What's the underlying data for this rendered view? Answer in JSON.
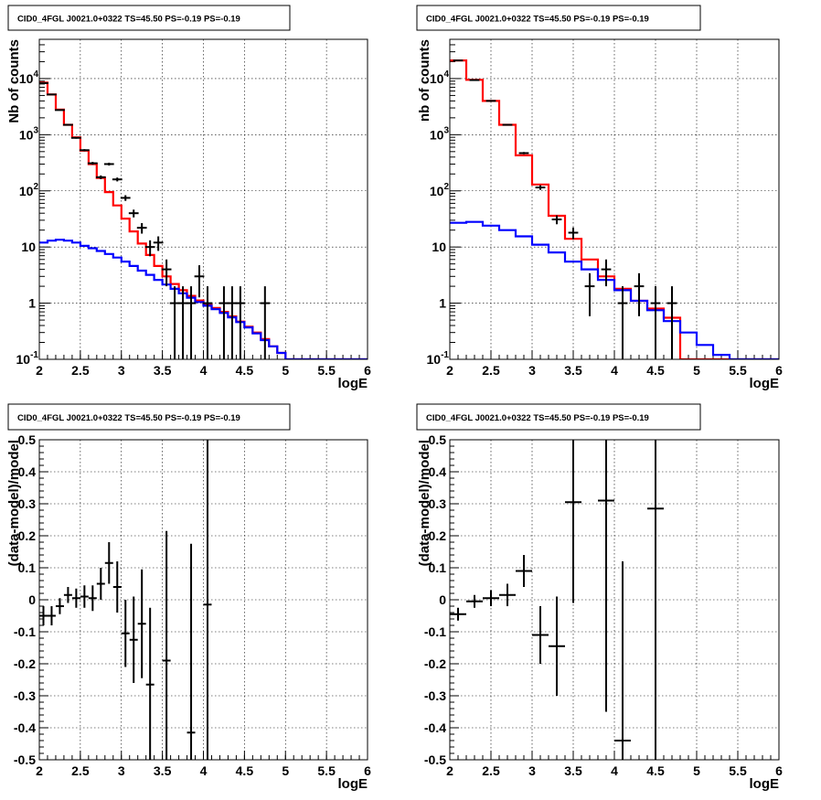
{
  "chart_data": [
    {
      "panel": "top-left",
      "type": "line",
      "title": "CID0_4FGL J0021.0+0322 TS=45.50 PS=-0.19 PS=-0.19",
      "xlabel": "logE",
      "ylabel": "Nb of counts",
      "xlim": [
        2,
        6
      ],
      "ylim": [
        0.1,
        50000
      ],
      "yscale": "log",
      "xticks": [
        "2",
        "2.5",
        "3",
        "3.5",
        "4",
        "4.5",
        "5",
        "5.5",
        "6"
      ],
      "yticks": [
        {
          "value": 0.1,
          "base": "10",
          "exp": "-1"
        },
        {
          "value": 1,
          "base": "1",
          "exp": ""
        },
        {
          "value": 10,
          "base": "10",
          "exp": ""
        },
        {
          "value": 100,
          "base": "10",
          "exp": "2"
        },
        {
          "value": 1000,
          "base": "10",
          "exp": "3"
        },
        {
          "value": 10000,
          "base": "10",
          "exp": "4"
        }
      ],
      "grid": true,
      "bin_edges": [
        2.0,
        2.1,
        2.2,
        2.3,
        2.4,
        2.5,
        2.6,
        2.7,
        2.8,
        2.9,
        3.0,
        3.1,
        3.2,
        3.3,
        3.4,
        3.5,
        3.6,
        3.7,
        3.8,
        3.9,
        4.0,
        4.1,
        4.2,
        4.3,
        4.4,
        4.5,
        4.6,
        4.7,
        4.8,
        4.9,
        5.0,
        5.1,
        5.2,
        5.3,
        5.4,
        5.5,
        5.6,
        5.7,
        5.8,
        5.9,
        6.0
      ],
      "series": [
        {
          "role": "model-total",
          "color": "#ff0000",
          "values": [
            8500,
            5200,
            2800,
            1500,
            900,
            520,
            300,
            170,
            95,
            55,
            32,
            19,
            11.5,
            7.2,
            4.6,
            3.0,
            2.2,
            1.7,
            1.35,
            1.12,
            0.95,
            0.82,
            0.7,
            0.58,
            0.47,
            0.38,
            0.3,
            0.23,
            0.17,
            0.13,
            0.1,
            0.1,
            0.1,
            0.1,
            0.1,
            0.1,
            0.1,
            0.1,
            0.1,
            0.1
          ]
        },
        {
          "role": "model-component",
          "color": "#0000ff",
          "values": [
            12,
            13,
            13.5,
            13,
            12,
            10.5,
            9.5,
            8.5,
            7.5,
            6.5,
            5.5,
            4.6,
            3.8,
            3.2,
            2.6,
            2.15,
            1.8,
            1.5,
            1.25,
            1.05,
            0.9,
            0.78,
            0.67,
            0.56,
            0.46,
            0.37,
            0.29,
            0.22,
            0.17,
            0.13,
            0.1,
            0.1,
            0.1,
            0.1,
            0.1,
            0.1,
            0.1,
            0.1,
            0.1,
            0.1
          ]
        }
      ],
      "points": [
        {
          "x": 2.05,
          "y": 8300
        },
        {
          "x": 2.15,
          "y": 5200
        },
        {
          "x": 2.25,
          "y": 2750
        },
        {
          "x": 2.35,
          "y": 1500
        },
        {
          "x": 2.45,
          "y": 880
        },
        {
          "x": 2.55,
          "y": 530
        },
        {
          "x": 2.65,
          "y": 310
        },
        {
          "x": 2.75,
          "y": 175
        },
        {
          "x": 2.85,
          "y": 300
        },
        {
          "x": 2.95,
          "y": 160
        },
        {
          "x": 3.05,
          "y": 75
        },
        {
          "x": 3.15,
          "y": 40
        },
        {
          "x": 3.25,
          "y": 22
        },
        {
          "x": 3.35,
          "y": 10
        },
        {
          "x": 3.45,
          "y": 12
        },
        {
          "x": 3.55,
          "y": 4
        },
        {
          "x": 3.65,
          "y": 1
        },
        {
          "x": 3.75,
          "y": 1
        },
        {
          "x": 3.85,
          "y": 1
        },
        {
          "x": 3.95,
          "y": 3
        },
        {
          "x": 4.05,
          "y": 1
        },
        {
          "x": 4.25,
          "y": 1
        },
        {
          "x": 4.35,
          "y": 1
        },
        {
          "x": 4.45,
          "y": 1
        },
        {
          "x": 4.75,
          "y": 1
        }
      ]
    },
    {
      "panel": "top-right",
      "type": "line",
      "title": "CID0_4FGL J0021.0+0322 TS=45.50 PS=-0.19 PS=-0.19",
      "xlabel": "logE",
      "ylabel": "nb of counts",
      "xlim": [
        2,
        6
      ],
      "ylim": [
        0.1,
        50000
      ],
      "yscale": "log",
      "xticks": [
        "2",
        "2.5",
        "3",
        "3.5",
        "4",
        "4.5",
        "5",
        "5.5",
        "6"
      ],
      "yticks": [
        {
          "value": 0.1,
          "base": "10",
          "exp": "-1"
        },
        {
          "value": 1,
          "base": "1",
          "exp": ""
        },
        {
          "value": 10,
          "base": "10",
          "exp": ""
        },
        {
          "value": 100,
          "base": "10",
          "exp": "2"
        },
        {
          "value": 1000,
          "base": "10",
          "exp": "3"
        },
        {
          "value": 10000,
          "base": "10",
          "exp": "4"
        }
      ],
      "grid": true,
      "bin_edges": [
        2.0,
        2.2,
        2.4,
        2.6,
        2.8,
        3.0,
        3.2,
        3.4,
        3.6,
        3.8,
        4.0,
        4.2,
        4.4,
        4.6,
        4.8,
        5.0,
        5.2,
        5.4,
        5.6,
        5.8,
        6.0
      ],
      "series": [
        {
          "role": "model-total",
          "color": "#ff0000",
          "values": [
            21000,
            9500,
            4000,
            1500,
            430,
            130,
            36,
            14,
            6,
            3,
            1.8,
            1.1,
            0.8,
            0.55,
            0.1,
            0.1,
            0.1,
            0.1,
            0.1,
            0.1
          ]
        },
        {
          "role": "model-component",
          "color": "#0000ff",
          "values": [
            27,
            28,
            24,
            20,
            15.5,
            11,
            8,
            5.5,
            4,
            2.6,
            1.7,
            1.1,
            0.75,
            0.48,
            0.3,
            0.18,
            0.12,
            0.1,
            0.1,
            0.1
          ]
        }
      ],
      "points": [
        {
          "x": 2.1,
          "y": 21000
        },
        {
          "x": 2.3,
          "y": 9400
        },
        {
          "x": 2.5,
          "y": 4000
        },
        {
          "x": 2.7,
          "y": 1500
        },
        {
          "x": 2.9,
          "y": 470
        },
        {
          "x": 3.1,
          "y": 115
        },
        {
          "x": 3.3,
          "y": 31
        },
        {
          "x": 3.5,
          "y": 18
        },
        {
          "x": 3.7,
          "y": 2
        },
        {
          "x": 3.9,
          "y": 4
        },
        {
          "x": 4.1,
          "y": 1
        },
        {
          "x": 4.3,
          "y": 2
        },
        {
          "x": 4.5,
          "y": 1
        },
        {
          "x": 4.7,
          "y": 1
        }
      ]
    },
    {
      "panel": "bottom-left",
      "type": "scatter",
      "title": "CID0_4FGL J0021.0+0322 TS=45.50 PS=-0.19 PS=-0.19",
      "xlabel": "logE",
      "ylabel": "(data-model)/model",
      "xlim": [
        2,
        6
      ],
      "ylim": [
        -0.5,
        0.5
      ],
      "xticks": [
        "2",
        "2.5",
        "3",
        "3.5",
        "4",
        "4.5",
        "5",
        "5.5",
        "6"
      ],
      "yticks": [
        "-0.5",
        "-0.4",
        "-0.3",
        "-0.2",
        "-0.1",
        "0",
        "0.1",
        "0.2",
        "0.3",
        "0.4",
        "0.5"
      ],
      "grid": true,
      "points": [
        {
          "x": 2.05,
          "y": -0.05,
          "xerr": 0.05,
          "yerr": 0.03
        },
        {
          "x": 2.15,
          "y": -0.05,
          "xerr": 0.05,
          "yerr": 0.03
        },
        {
          "x": 2.25,
          "y": -0.02,
          "xerr": 0.05,
          "yerr": 0.025
        },
        {
          "x": 2.35,
          "y": 0.015,
          "xerr": 0.05,
          "yerr": 0.025
        },
        {
          "x": 2.45,
          "y": 0.005,
          "xerr": 0.05,
          "yerr": 0.03
        },
        {
          "x": 2.55,
          "y": 0.01,
          "xerr": 0.05,
          "yerr": 0.035
        },
        {
          "x": 2.65,
          "y": 0.005,
          "xerr": 0.05,
          "yerr": 0.04
        },
        {
          "x": 2.75,
          "y": 0.05,
          "xerr": 0.05,
          "yerr": 0.05
        },
        {
          "x": 2.85,
          "y": 0.115,
          "xerr": 0.05,
          "yerr": 0.065
        },
        {
          "x": 2.95,
          "y": 0.04,
          "xerr": 0.05,
          "yerr": 0.08
        },
        {
          "x": 3.05,
          "y": -0.105,
          "xerr": 0.05,
          "yerr": 0.105
        },
        {
          "x": 3.15,
          "y": -0.125,
          "xerr": 0.05,
          "yerr": 0.135
        },
        {
          "x": 3.25,
          "y": -0.075,
          "xerr": 0.05,
          "yerr": 0.17
        },
        {
          "x": 3.35,
          "y": -0.265,
          "xerr": 0.05,
          "yerr": 0.24
        },
        {
          "x": 3.55,
          "y": -0.19,
          "xerr": 0.05,
          "yerr": 0.405
        },
        {
          "x": 3.85,
          "y": -0.415,
          "xerr": 0.05,
          "yerr": 0.59
        },
        {
          "x": 4.05,
          "y": -0.015,
          "xerr": 0.05,
          "yerr": 0.95
        }
      ]
    },
    {
      "panel": "bottom-right",
      "type": "scatter",
      "title": "CID0_4FGL J0021.0+0322 TS=45.50 PS=-0.19 PS=-0.19",
      "xlabel": "logE",
      "ylabel": "(data-model)/model",
      "xlim": [
        2,
        6
      ],
      "ylim": [
        -0.5,
        0.5
      ],
      "xticks": [
        "2",
        "2.5",
        "3",
        "3.5",
        "4",
        "4.5",
        "5",
        "5.5",
        "6"
      ],
      "yticks": [
        "-0.5",
        "-0.4",
        "-0.3",
        "-0.2",
        "-0.1",
        "0",
        "0.1",
        "0.2",
        "0.3",
        "0.4",
        "0.5"
      ],
      "grid": true,
      "points": [
        {
          "x": 2.1,
          "y": -0.045,
          "xerr": 0.1,
          "yerr": 0.02
        },
        {
          "x": 2.3,
          "y": -0.005,
          "xerr": 0.1,
          "yerr": 0.02
        },
        {
          "x": 2.5,
          "y": 0.005,
          "xerr": 0.1,
          "yerr": 0.025
        },
        {
          "x": 2.7,
          "y": 0.015,
          "xerr": 0.1,
          "yerr": 0.035
        },
        {
          "x": 2.9,
          "y": 0.09,
          "xerr": 0.1,
          "yerr": 0.05
        },
        {
          "x": 3.1,
          "y": -0.11,
          "xerr": 0.1,
          "yerr": 0.09
        },
        {
          "x": 3.3,
          "y": -0.145,
          "xerr": 0.1,
          "yerr": 0.155
        },
        {
          "x": 3.5,
          "y": 0.305,
          "xerr": 0.1,
          "yerr": 0.315
        },
        {
          "x": 3.9,
          "y": 0.31,
          "xerr": 0.1,
          "yerr": 0.66
        },
        {
          "x": 4.1,
          "y": -0.44,
          "xerr": 0.1,
          "yerr": 0.56
        },
        {
          "x": 4.5,
          "y": 0.285,
          "xerr": 0.1,
          "yerr": 0.92
        }
      ]
    }
  ]
}
